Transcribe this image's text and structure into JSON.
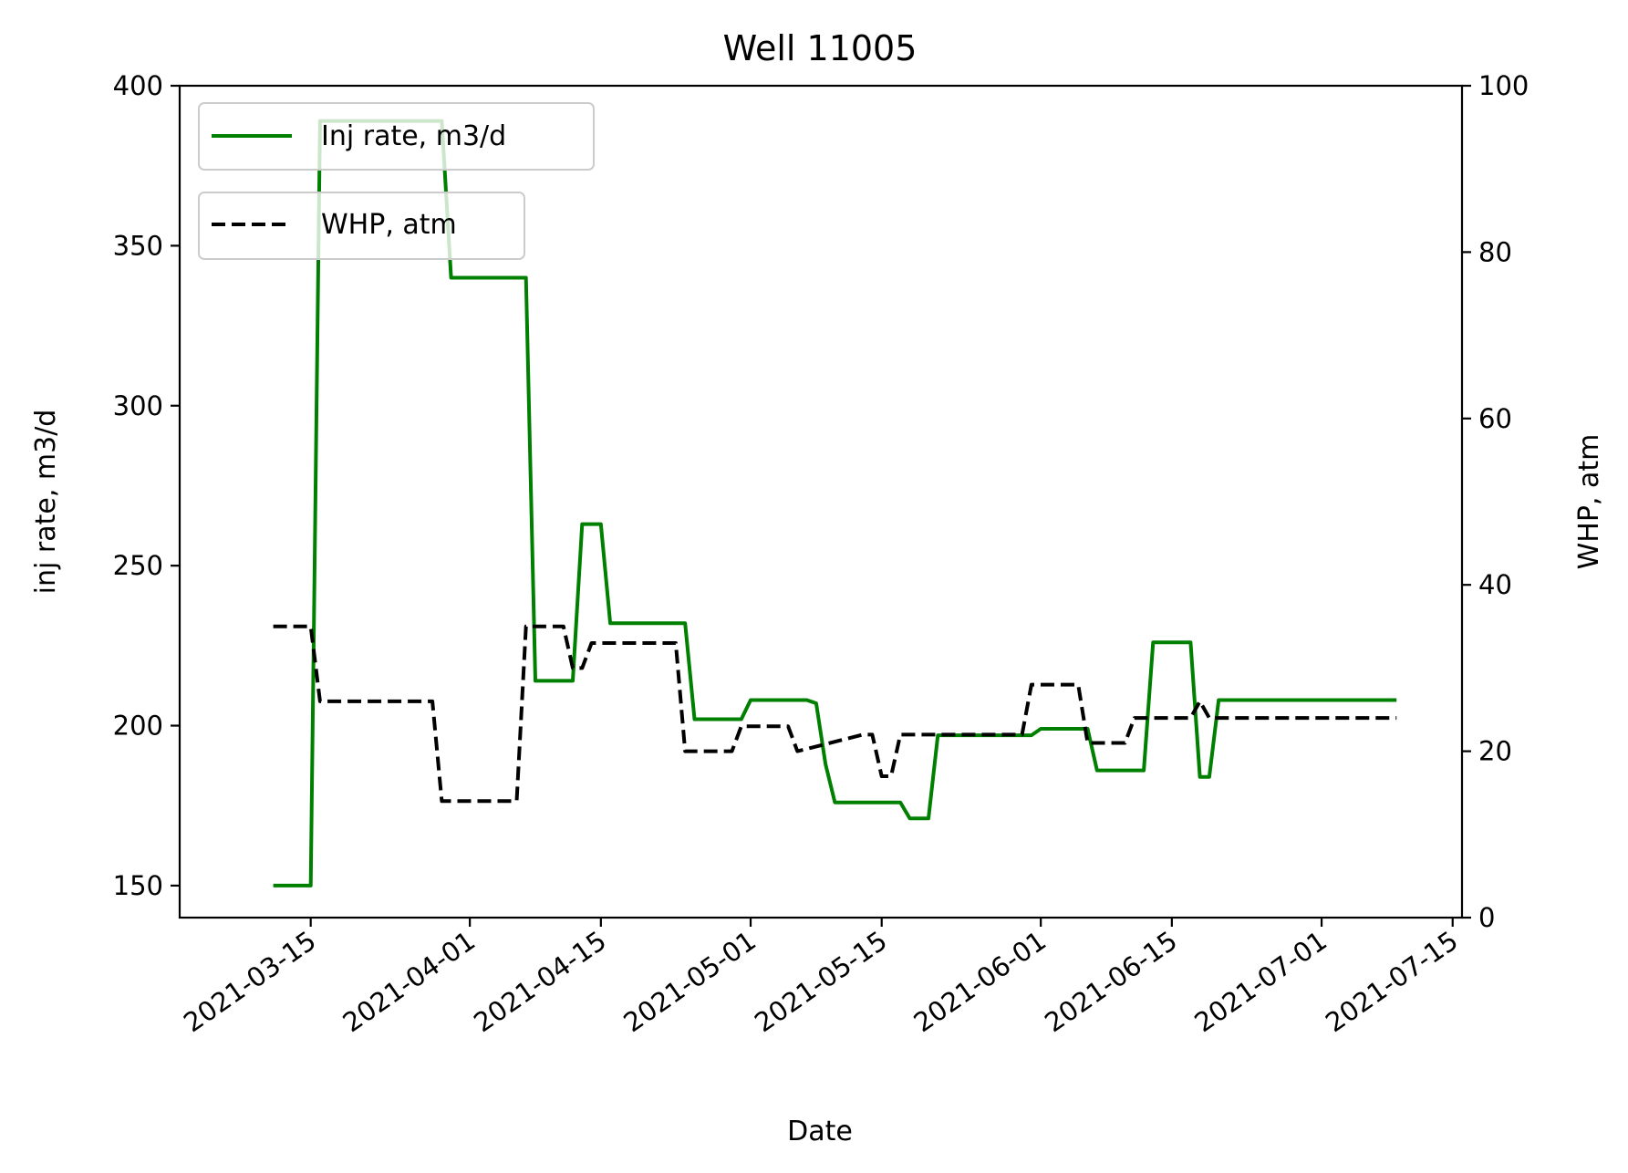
{
  "chart_data": {
    "type": "line",
    "title": "Well 11005",
    "xlabel": "Date",
    "ylabel_left": "inj rate, m3/d",
    "ylabel_right": "WHP, atm",
    "xlim": [
      "2021-03-01",
      "2021-07-16"
    ],
    "ylim_left": [
      140,
      400
    ],
    "ylim_right": [
      0,
      100
    ],
    "x_ticks": [
      "2021-03-15",
      "2021-04-01",
      "2021-04-15",
      "2021-05-01",
      "2021-05-15",
      "2021-06-01",
      "2021-06-15",
      "2021-07-01",
      "2021-07-15"
    ],
    "y_ticks_left": [
      150,
      200,
      250,
      300,
      350,
      400
    ],
    "y_ticks_right": [
      0,
      20,
      40,
      60,
      80,
      100
    ],
    "grid": false,
    "series": [
      {
        "name": "Inj rate, m3/d",
        "axis": "left",
        "color": "#008000",
        "style": "solid",
        "x": [
          "2021-03-11",
          "2021-03-15",
          "2021-03-16",
          "2021-03-29",
          "2021-03-30",
          "2021-04-07",
          "2021-04-08",
          "2021-04-12",
          "2021-04-13",
          "2021-04-15",
          "2021-04-16",
          "2021-04-24",
          "2021-04-25",
          "2021-04-30",
          "2021-05-01",
          "2021-05-07",
          "2021-05-08",
          "2021-05-09",
          "2021-05-10",
          "2021-05-17",
          "2021-05-18",
          "2021-05-20",
          "2021-05-21",
          "2021-05-31",
          "2021-06-01",
          "2021-06-06",
          "2021-06-07",
          "2021-06-12",
          "2021-06-13",
          "2021-06-17",
          "2021-06-18",
          "2021-06-19",
          "2021-06-20",
          "2021-07-09"
        ],
        "y": [
          150,
          150,
          389,
          389,
          340,
          340,
          214,
          214,
          263,
          263,
          232,
          232,
          202,
          202,
          208,
          208,
          207,
          188,
          176,
          176,
          171,
          171,
          197,
          197,
          199,
          199,
          186,
          186,
          226,
          226,
          184,
          184,
          208,
          208
        ]
      },
      {
        "name": "WHP, atm",
        "axis": "right",
        "color": "#000000",
        "style": "dashed",
        "x": [
          "2021-03-11",
          "2021-03-15",
          "2021-03-16",
          "2021-03-28",
          "2021-03-29",
          "2021-04-06",
          "2021-04-07",
          "2021-04-11",
          "2021-04-12",
          "2021-04-13",
          "2021-04-14",
          "2021-04-23",
          "2021-04-24",
          "2021-04-29",
          "2021-04-30",
          "2021-05-04",
          "2021-05-05",
          "2021-05-06",
          "2021-05-13",
          "2021-05-14",
          "2021-05-15",
          "2021-05-16",
          "2021-05-17",
          "2021-05-23",
          "2021-05-24",
          "2021-05-30",
          "2021-05-31",
          "2021-06-05",
          "2021-06-06",
          "2021-06-10",
          "2021-06-11",
          "2021-06-17",
          "2021-06-18",
          "2021-06-19",
          "2021-07-09"
        ],
        "y": [
          35,
          35,
          26,
          26,
          14,
          14,
          35,
          35,
          30,
          30,
          33,
          33,
          20,
          20,
          23,
          23,
          23,
          20,
          22,
          22,
          17,
          17,
          22,
          22,
          22,
          22,
          28,
          28,
          21,
          21,
          24,
          24,
          26,
          24,
          24
        ]
      }
    ]
  }
}
